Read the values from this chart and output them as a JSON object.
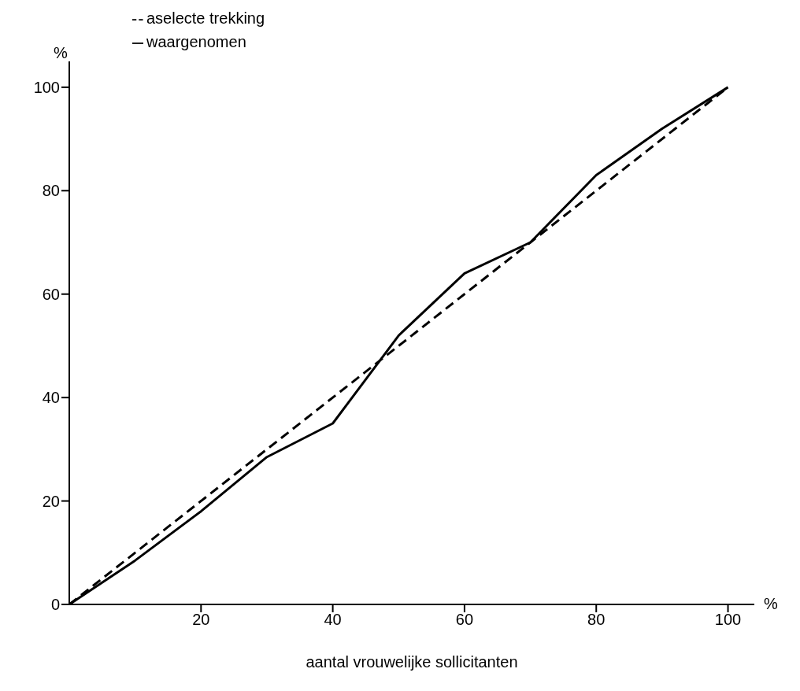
{
  "chart_data": {
    "type": "line",
    "xlabel": "aantal vrouwelijke sollicitanten",
    "ylabel": "%",
    "annotations": [
      "%"
    ],
    "series": [
      {
        "name": "aselecte trekking",
        "color": "#000000",
        "line_style": "dashed",
        "x": [
          0,
          100
        ],
        "values": [
          0,
          100
        ]
      },
      {
        "name": "waargenomen",
        "color": "#000000",
        "line_style": "solid",
        "x": [
          0,
          10,
          20,
          30,
          40,
          50,
          60,
          70,
          80,
          90,
          100
        ],
        "values": [
          0,
          8.5,
          18,
          28.5,
          35,
          52,
          64,
          70,
          83,
          92,
          100
        ]
      }
    ],
    "xlim": [
      0,
      104
    ],
    "ylim": [
      0,
      105
    ],
    "xticks": [
      20,
      40,
      60,
      80,
      100
    ],
    "yticks": [
      0,
      20,
      40,
      60,
      80,
      100
    ],
    "grid": false,
    "legend": "top left",
    "marker": "none"
  }
}
